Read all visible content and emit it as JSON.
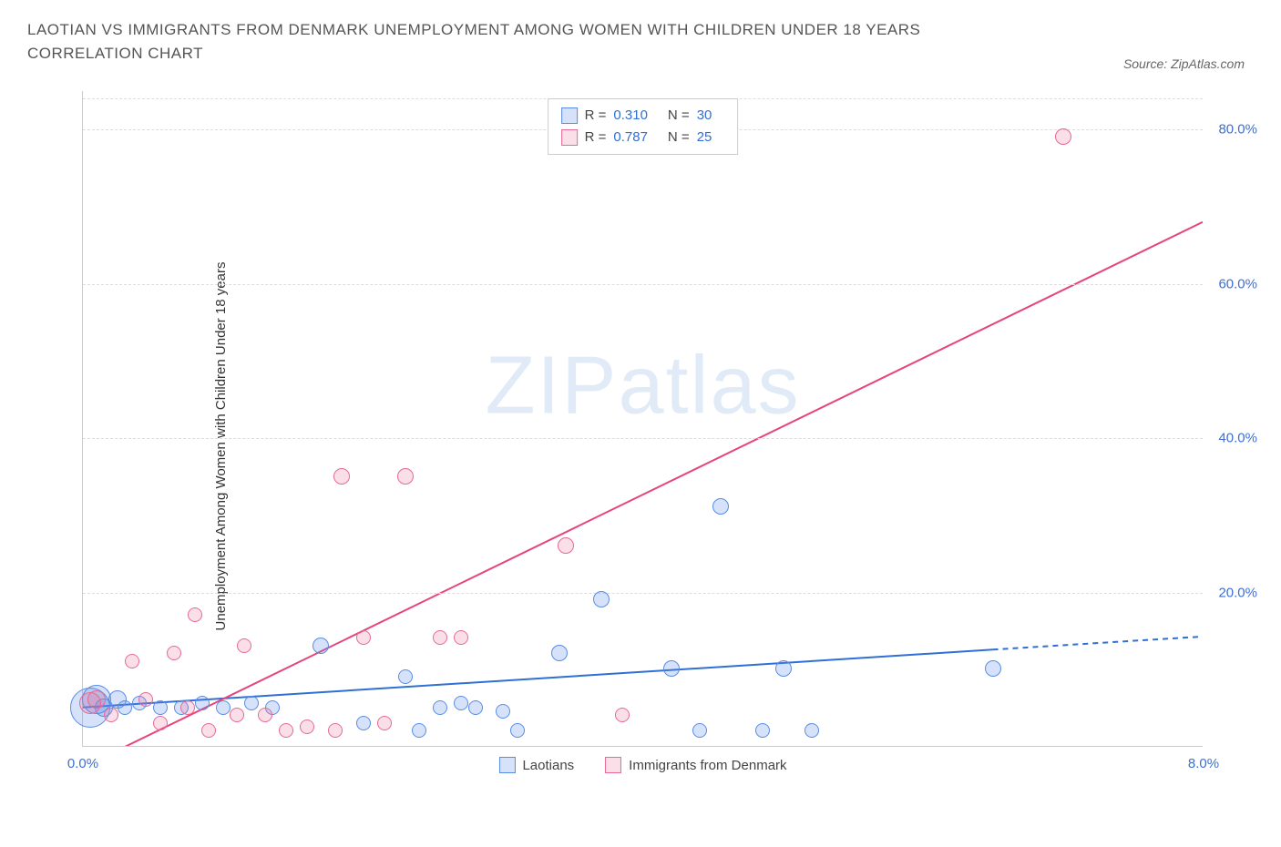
{
  "title": "LAOTIAN VS IMMIGRANTS FROM DENMARK UNEMPLOYMENT AMONG WOMEN WITH CHILDREN UNDER 18 YEARS CORRELATION CHART",
  "source": "Source: ZipAtlas.com",
  "watermark_a": "ZIP",
  "watermark_b": "atlas",
  "chart": {
    "type": "scatter",
    "y_label": "Unemployment Among Women with Children Under 18 years",
    "xlim": [
      0,
      8
    ],
    "ylim": [
      0,
      85
    ],
    "x_ticks": [
      {
        "v": 0,
        "l": "0.0%"
      },
      {
        "v": 8,
        "l": "8.0%"
      }
    ],
    "y_ticks": [
      {
        "v": 20,
        "l": "20.0%"
      },
      {
        "v": 40,
        "l": "40.0%"
      },
      {
        "v": 60,
        "l": "60.0%"
      },
      {
        "v": 80,
        "l": "80.0%"
      }
    ],
    "x_tick_color": "#3b6fd6",
    "y_tick_color": "#3b6fd6",
    "grid_color": "#dddddd",
    "series": [
      {
        "key": "laotians",
        "name": "Laotians",
        "fill": "rgba(90,140,230,0.25)",
        "stroke": "#5a8ce6",
        "r_label": "0.310",
        "n_label": "30",
        "trend": {
          "x1": 0,
          "y1": 5,
          "x2": 6.5,
          "y2": 12.5,
          "dash_x1": 6.5,
          "dash_y1": 12.5,
          "dash_x2": 8,
          "dash_y2": 14.2,
          "color": "#2f6fd6",
          "width": 2
        },
        "points": [
          {
            "x": 0.05,
            "y": 5,
            "r": 22
          },
          {
            "x": 0.1,
            "y": 6,
            "r": 16
          },
          {
            "x": 0.15,
            "y": 5,
            "r": 10
          },
          {
            "x": 0.3,
            "y": 5,
            "r": 8
          },
          {
            "x": 0.4,
            "y": 5.5,
            "r": 8
          },
          {
            "x": 0.55,
            "y": 5,
            "r": 8
          },
          {
            "x": 0.7,
            "y": 5,
            "r": 8
          },
          {
            "x": 0.85,
            "y": 5.5,
            "r": 8
          },
          {
            "x": 1.0,
            "y": 5,
            "r": 8
          },
          {
            "x": 1.2,
            "y": 5.5,
            "r": 8
          },
          {
            "x": 1.35,
            "y": 5,
            "r": 8
          },
          {
            "x": 1.7,
            "y": 13,
            "r": 9
          },
          {
            "x": 2.0,
            "y": 3,
            "r": 8
          },
          {
            "x": 2.3,
            "y": 9,
            "r": 8
          },
          {
            "x": 2.4,
            "y": 2,
            "r": 8
          },
          {
            "x": 2.55,
            "y": 5,
            "r": 8
          },
          {
            "x": 2.7,
            "y": 5.5,
            "r": 8
          },
          {
            "x": 2.8,
            "y": 5,
            "r": 8
          },
          {
            "x": 3.0,
            "y": 4.5,
            "r": 8
          },
          {
            "x": 3.1,
            "y": 2,
            "r": 8
          },
          {
            "x": 3.4,
            "y": 12,
            "r": 9
          },
          {
            "x": 3.7,
            "y": 19,
            "r": 9
          },
          {
            "x": 4.2,
            "y": 10,
            "r": 9
          },
          {
            "x": 4.4,
            "y": 2,
            "r": 8
          },
          {
            "x": 4.55,
            "y": 31,
            "r": 9
          },
          {
            "x": 4.85,
            "y": 2,
            "r": 8
          },
          {
            "x": 5.0,
            "y": 10,
            "r": 9
          },
          {
            "x": 5.2,
            "y": 2,
            "r": 8
          },
          {
            "x": 6.5,
            "y": 10,
            "r": 9
          },
          {
            "x": 0.25,
            "y": 6,
            "r": 10
          }
        ]
      },
      {
        "key": "denmark",
        "name": "Immigrants from Denmark",
        "fill": "rgba(235,110,150,0.22)",
        "stroke": "#e66a93",
        "r_label": "0.787",
        "n_label": "25",
        "trend": {
          "x1": 0.2,
          "y1": -1,
          "x2": 8.0,
          "y2": 68,
          "color": "#e6447d",
          "width": 2
        },
        "points": [
          {
            "x": 0.05,
            "y": 5.5,
            "r": 12
          },
          {
            "x": 0.1,
            "y": 6,
            "r": 10
          },
          {
            "x": 0.2,
            "y": 4,
            "r": 8
          },
          {
            "x": 0.35,
            "y": 11,
            "r": 8
          },
          {
            "x": 0.55,
            "y": 3,
            "r": 8
          },
          {
            "x": 0.65,
            "y": 12,
            "r": 8
          },
          {
            "x": 0.75,
            "y": 5,
            "r": 8
          },
          {
            "x": 0.8,
            "y": 17,
            "r": 8
          },
          {
            "x": 0.9,
            "y": 2,
            "r": 8
          },
          {
            "x": 1.1,
            "y": 4,
            "r": 8
          },
          {
            "x": 1.15,
            "y": 13,
            "r": 8
          },
          {
            "x": 1.3,
            "y": 4,
            "r": 8
          },
          {
            "x": 1.45,
            "y": 2,
            "r": 8
          },
          {
            "x": 1.6,
            "y": 2.5,
            "r": 8
          },
          {
            "x": 1.8,
            "y": 2,
            "r": 8
          },
          {
            "x": 1.85,
            "y": 35,
            "r": 9
          },
          {
            "x": 2.0,
            "y": 14,
            "r": 8
          },
          {
            "x": 2.15,
            "y": 3,
            "r": 8
          },
          {
            "x": 2.3,
            "y": 35,
            "r": 9
          },
          {
            "x": 2.55,
            "y": 14,
            "r": 8
          },
          {
            "x": 2.7,
            "y": 14,
            "r": 8
          },
          {
            "x": 3.45,
            "y": 26,
            "r": 9
          },
          {
            "x": 3.85,
            "y": 4,
            "r": 8
          },
          {
            "x": 7.0,
            "y": 79,
            "r": 9
          },
          {
            "x": 0.45,
            "y": 6,
            "r": 8
          }
        ]
      }
    ],
    "legend_stats": {
      "r_prefix": "R =",
      "n_prefix": "N ="
    },
    "stat_value_color": "#2f6fd6"
  }
}
